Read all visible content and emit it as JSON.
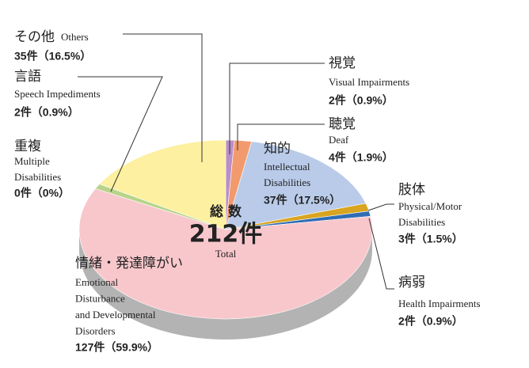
{
  "chart_data": {
    "type": "pie",
    "center_label": "総 数",
    "total_label": "212件",
    "total_en": "Total",
    "categories": [
      "視覚",
      "聴覚",
      "知的",
      "肢体",
      "病弱",
      "情緒・発達障がい",
      "重複",
      "言語",
      "その他"
    ],
    "categories_en": [
      [
        "Visual Impairments"
      ],
      [
        "Deaf"
      ],
      [
        "Intellectual",
        "Disabilities"
      ],
      [
        "Physical/Motor",
        "Disabilities"
      ],
      [
        "Health Impairments"
      ],
      [
        "Emotional",
        "Disturbance",
        "and Developmental",
        "Disorders"
      ],
      [
        "Multiple",
        "Disabilities"
      ],
      [
        "Speech Impediments"
      ],
      [
        "Others"
      ]
    ],
    "values": [
      2,
      4,
      37,
      3,
      2,
      127,
      0,
      2,
      35
    ],
    "value_labels": [
      "2件（0.9%）",
      "4件（1.9%）",
      "37件（17.5%）",
      "3件（1.5%）",
      "2件（0.9%）",
      "127件（59.9%）",
      "0件（0%）",
      "2件（0.9%）",
      "35件（16.5%）"
    ],
    "colors": [
      "#b98fc6",
      "#f29a6e",
      "#b9cbe9",
      "#d9a520",
      "#2f6db5",
      "#f8c7cc",
      "#e0e0e0",
      "#b7d48a",
      "#fdf0a0"
    ]
  }
}
